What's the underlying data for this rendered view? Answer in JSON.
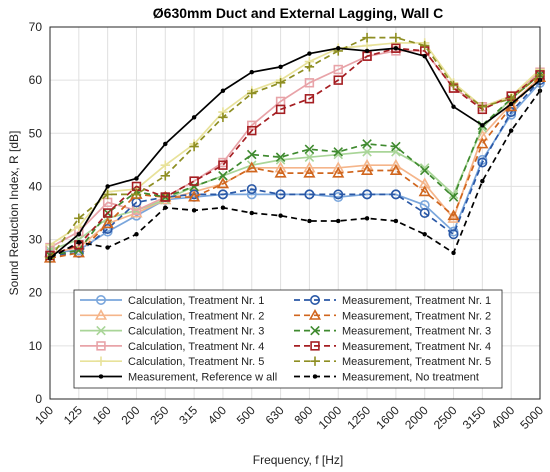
{
  "chart_data": {
    "type": "line",
    "title": "Ø630mm Duct and External Lagging, Wall C",
    "xlabel": "Frequency, f [Hz]",
    "ylabel": "Sound Reduction Index, R [dB]",
    "categories": [
      "100",
      "125",
      "160",
      "200",
      "250",
      "315",
      "400",
      "500",
      "630",
      "800",
      "1000",
      "1250",
      "1600",
      "2000",
      "2500",
      "3150",
      "4000",
      "5000"
    ],
    "ylim": [
      0,
      70
    ],
    "yticks": [
      0,
      10,
      20,
      30,
      40,
      50,
      60,
      70
    ],
    "grid": true,
    "legend_position": "bottom",
    "series": [
      {
        "name": "Calculation, Treatment Nr. 1",
        "color": "#7aa6dc",
        "style": "solid",
        "marker": "circle",
        "values": [
          27.5,
          28,
          31.5,
          34.5,
          37.5,
          38,
          38.5,
          38.5,
          38.5,
          38.5,
          38,
          38.5,
          38.5,
          36.5,
          31.5,
          45,
          53.5,
          59.5
        ]
      },
      {
        "name": "Calculation, Treatment Nr. 2",
        "color": "#f5b58a",
        "style": "solid",
        "marker": "triangle",
        "values": [
          27.5,
          28.5,
          33,
          35,
          37.5,
          39,
          40.5,
          43.5,
          43.5,
          43.5,
          43.5,
          44,
          44,
          40.5,
          34,
          49.5,
          55.5,
          60.5
        ]
      },
      {
        "name": "Calculation, Treatment Nr. 3",
        "color": "#a9d598",
        "style": "solid",
        "marker": "x",
        "values": [
          28,
          30,
          34,
          35.5,
          37.5,
          40,
          42,
          44,
          45,
          45.5,
          46,
          46.5,
          46.5,
          43.5,
          38.5,
          51,
          56.5,
          61
        ]
      },
      {
        "name": "Calculation, Treatment Nr. 4",
        "color": "#e8a3a8",
        "style": "solid",
        "marker": "square",
        "values": [
          28.5,
          31.5,
          37,
          35.5,
          38,
          41,
          44.5,
          51.5,
          56,
          59.5,
          62,
          64.5,
          65.5,
          65.5,
          58.5,
          55,
          57,
          61.5
        ]
      },
      {
        "name": "Calculation, Treatment Nr. 5",
        "color": "#e8e29a",
        "style": "solid",
        "marker": "plus",
        "values": [
          29,
          32.5,
          39,
          39.5,
          44,
          48,
          54,
          58,
          60,
          63.5,
          66,
          66.5,
          67,
          67,
          59.5,
          55,
          57,
          62
        ]
      },
      {
        "name": "Measurement, Treatment Nr. 1",
        "color": "#2a58a6",
        "style": "dashed",
        "marker": "circle",
        "values": [
          27,
          27.5,
          32,
          37,
          38,
          38.5,
          38.5,
          39.5,
          38.5,
          38.5,
          38.5,
          38.5,
          38.5,
          35,
          31,
          44.5,
          54,
          60
        ]
      },
      {
        "name": "Measurement, Treatment Nr. 2",
        "color": "#d0661e",
        "style": "dashed",
        "marker": "triangle",
        "values": [
          26.5,
          27.5,
          33,
          38.5,
          38,
          38,
          40.5,
          43.5,
          42.5,
          42.5,
          42.5,
          43,
          43,
          39,
          34.5,
          48,
          55,
          60.5
        ]
      },
      {
        "name": "Measurement, Treatment Nr. 3",
        "color": "#3f8a2f",
        "style": "dashed",
        "marker": "x",
        "values": [
          27,
          28,
          35,
          39,
          38,
          40,
          42,
          46,
          45.5,
          47,
          46.5,
          48,
          47.5,
          43,
          38,
          51.5,
          56.5,
          61
        ]
      },
      {
        "name": "Measurement, Treatment Nr. 4",
        "color": "#a51e22",
        "style": "dashed",
        "marker": "square",
        "values": [
          27,
          29,
          35,
          40,
          38,
          41,
          44,
          50.5,
          54.5,
          56.5,
          60,
          64.5,
          66,
          65.5,
          58.5,
          54.5,
          57,
          61
        ]
      },
      {
        "name": "Measurement, Treatment Nr. 5",
        "color": "#8e8e22",
        "style": "dashed",
        "marker": "plus",
        "values": [
          26.5,
          34,
          38.5,
          38.5,
          42,
          47.5,
          53,
          57.5,
          59.5,
          62.5,
          65.5,
          68,
          68,
          66.5,
          59,
          55,
          56.5,
          61
        ]
      },
      {
        "name": "Measurement, Reference w all",
        "color": "#000000",
        "style": "solid",
        "marker": "dot",
        "values": [
          26.5,
          31,
          40,
          41.5,
          48,
          53,
          58,
          61.5,
          62.5,
          65,
          66,
          65.5,
          66,
          64.5,
          55,
          51.5,
          55.5,
          60
        ]
      },
      {
        "name": "Measurement, No treatment",
        "color": "#000000",
        "style": "dashed",
        "marker": "dot",
        "values": [
          26.5,
          29.5,
          28.5,
          31,
          36,
          35.5,
          36,
          35,
          34.5,
          33.5,
          33.5,
          34,
          33.5,
          31,
          27.5,
          41,
          50.5,
          58
        ]
      }
    ]
  }
}
